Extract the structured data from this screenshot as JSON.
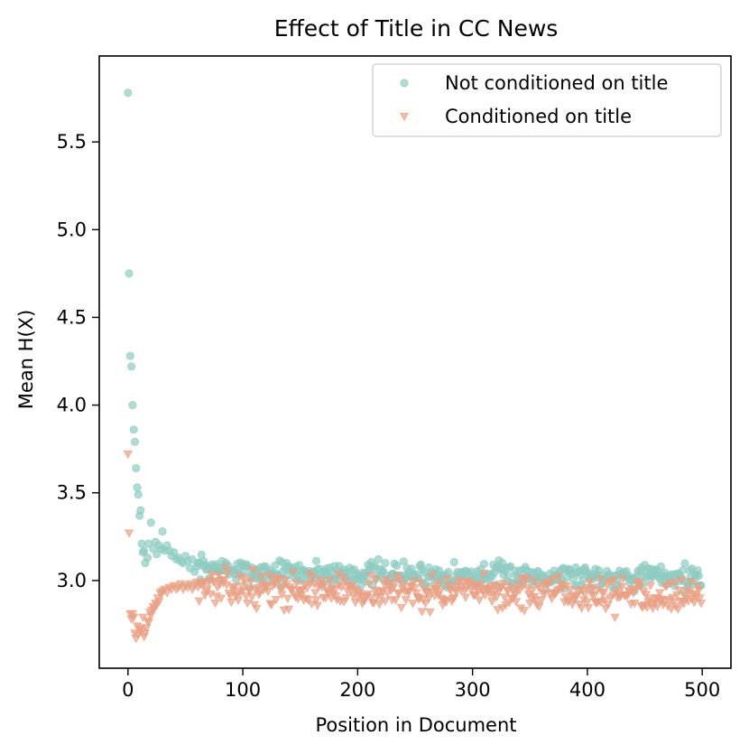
{
  "chart_data": {
    "type": "scatter",
    "title": "Effect of Title in CC News",
    "xlabel": "Position in Document",
    "ylabel": "Mean H(X)",
    "xlim": [
      -25,
      525
    ],
    "ylim": [
      2.5,
      5.99
    ],
    "xticks": [
      0,
      100,
      200,
      300,
      400,
      500
    ],
    "yticks": [
      3.0,
      3.5,
      4.0,
      4.5,
      5.0,
      5.5
    ],
    "ytick_labels": [
      "3.0",
      "3.5",
      "4.0",
      "4.5",
      "5.0",
      "5.5"
    ],
    "grid": false,
    "legend_position": "top-right",
    "series": [
      {
        "name": "Not conditioned on title",
        "marker": "circle",
        "color": "#8ecbc2",
        "head": [
          [
            0,
            5.78
          ],
          [
            1,
            4.75
          ],
          [
            2,
            4.28
          ],
          [
            3,
            4.22
          ],
          [
            4,
            4.0
          ],
          [
            5,
            3.86
          ],
          [
            6,
            3.79
          ],
          [
            7,
            3.64
          ],
          [
            8,
            3.53
          ],
          [
            9,
            3.49
          ],
          [
            10,
            3.37
          ],
          [
            11,
            3.4
          ],
          [
            12,
            3.21
          ],
          [
            13,
            3.16
          ],
          [
            14,
            3.17
          ],
          [
            15,
            3.1
          ],
          [
            17,
            3.13
          ],
          [
            18,
            3.21
          ],
          [
            20,
            3.33
          ],
          [
            22,
            3.18
          ],
          [
            24,
            3.22
          ],
          [
            25,
            3.15
          ],
          [
            27,
            3.2
          ],
          [
            29,
            3.18
          ],
          [
            30,
            3.28
          ],
          [
            32,
            3.17
          ],
          [
            34,
            3.2
          ],
          [
            36,
            3.17
          ],
          [
            38,
            3.14
          ],
          [
            40,
            3.16
          ],
          [
            42,
            3.12
          ],
          [
            44,
            3.13
          ],
          [
            46,
            3.11
          ],
          [
            48,
            3.1
          ],
          [
            50,
            3.14
          ],
          [
            52,
            3.11
          ],
          [
            54,
            3.07
          ],
          [
            56,
            3.12
          ],
          [
            58,
            3.05
          ],
          [
            60,
            3.08
          ]
        ],
        "tail": {
          "x_start": 61,
          "x_end": 499,
          "step": 1,
          "baseline": [
            [
              61,
              3.08
            ],
            [
              100,
              3.05
            ],
            [
              200,
              3.04
            ],
            [
              300,
              3.03
            ],
            [
              400,
              3.03
            ],
            [
              499,
              3.02
            ]
          ],
          "spread": 0.035,
          "seed": 7
        }
      },
      {
        "name": "Conditioned on title",
        "marker": "triangle-down",
        "color": "#e8a084",
        "head": [
          [
            0,
            3.72
          ],
          [
            1,
            3.27
          ],
          [
            2,
            2.81
          ],
          [
            3,
            2.78
          ],
          [
            4,
            2.81
          ],
          [
            5,
            2.79
          ],
          [
            6,
            2.7
          ],
          [
            7,
            2.67
          ],
          [
            8,
            2.74
          ],
          [
            9,
            2.69
          ],
          [
            10,
            2.72
          ],
          [
            11,
            2.73
          ],
          [
            12,
            2.71
          ],
          [
            13,
            2.79
          ],
          [
            14,
            2.68
          ],
          [
            15,
            2.7
          ],
          [
            16,
            2.73
          ],
          [
            17,
            2.77
          ],
          [
            18,
            2.76
          ],
          [
            19,
            2.82
          ],
          [
            20,
            2.8
          ],
          [
            21,
            2.83
          ],
          [
            22,
            2.85
          ],
          [
            23,
            2.84
          ],
          [
            24,
            2.87
          ],
          [
            25,
            2.86
          ],
          [
            26,
            2.9
          ],
          [
            27,
            2.88
          ],
          [
            28,
            2.93
          ],
          [
            29,
            2.92
          ],
          [
            30,
            2.94
          ],
          [
            32,
            2.95
          ],
          [
            34,
            2.93
          ],
          [
            36,
            2.96
          ],
          [
            38,
            2.95
          ],
          [
            40,
            2.97
          ],
          [
            42,
            2.95
          ],
          [
            44,
            2.96
          ],
          [
            46,
            2.98
          ],
          [
            48,
            2.95
          ],
          [
            50,
            2.97
          ],
          [
            52,
            2.96
          ],
          [
            54,
            2.98
          ],
          [
            56,
            2.95
          ],
          [
            58,
            2.97
          ],
          [
            60,
            2.99
          ]
        ],
        "tail": {
          "x_start": 61,
          "x_end": 499,
          "step": 1,
          "baseline": [
            [
              61,
              2.97
            ],
            [
              100,
              2.95
            ],
            [
              200,
              2.94
            ],
            [
              300,
              2.93
            ],
            [
              400,
              2.92
            ],
            [
              499,
              2.92
            ]
          ],
          "spread": 0.045,
          "seed": 13
        }
      }
    ]
  }
}
